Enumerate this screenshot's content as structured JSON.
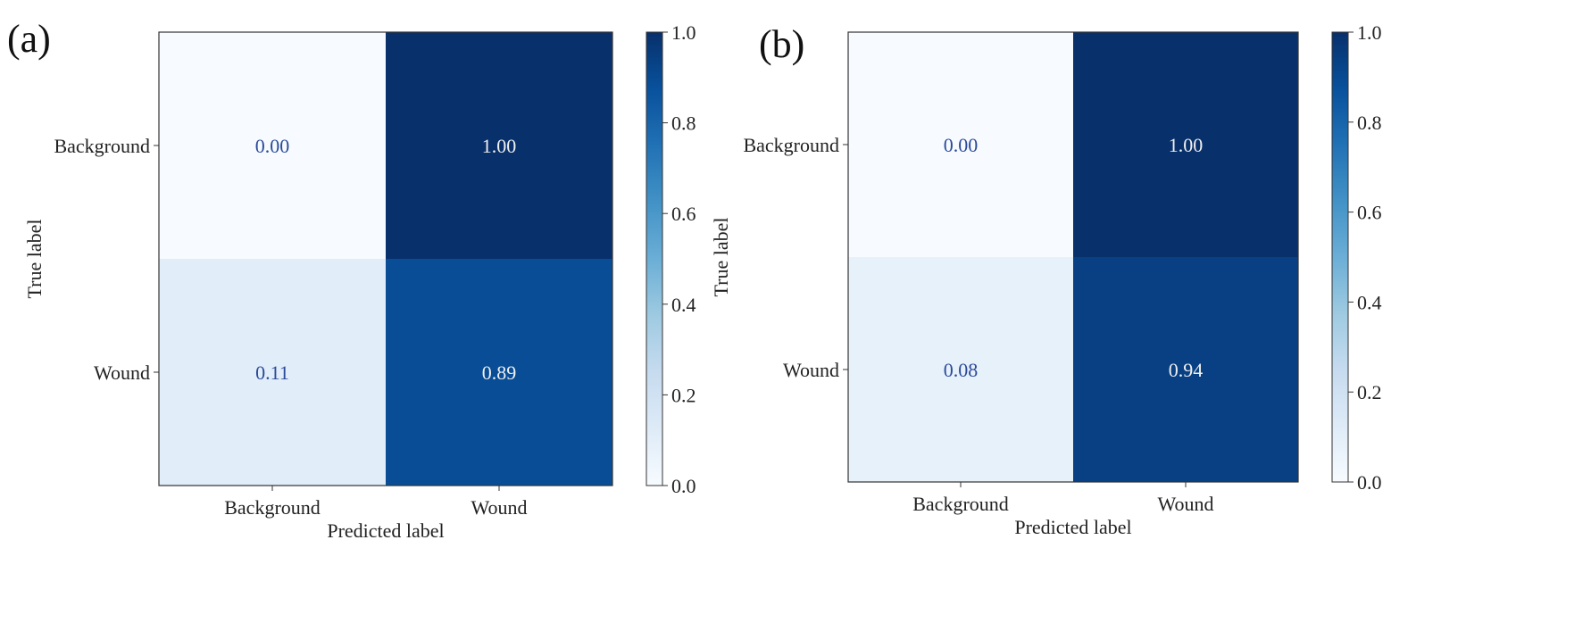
{
  "chart_data": [
    {
      "type": "heatmap",
      "panel_label": "(a)",
      "x_categories": [
        "Background",
        "Wound"
      ],
      "y_categories": [
        "Background",
        "Wound"
      ],
      "matrix": [
        [
          0.0,
          1.0
        ],
        [
          0.11,
          0.89
        ]
      ],
      "matrix_labels": [
        [
          "0.00",
          "1.00"
        ],
        [
          "0.11",
          "0.89"
        ]
      ],
      "xlabel": "Predicted label",
      "ylabel": "True label",
      "colorbar": {
        "range": [
          0.0,
          1.0
        ],
        "ticks": [
          "0.0",
          "0.2",
          "0.4",
          "0.6",
          "0.8",
          "1.0"
        ]
      },
      "colormap": [
        "#f7fbff",
        "#deebf7",
        "#c6dbef",
        "#9ecae1",
        "#6baed6",
        "#4292c6",
        "#2171b5",
        "#08519c",
        "#08306b"
      ]
    },
    {
      "type": "heatmap",
      "panel_label": "(b)",
      "x_categories": [
        "Background",
        "Wound"
      ],
      "y_categories": [
        "Background",
        "Wound"
      ],
      "matrix": [
        [
          0.0,
          1.0
        ],
        [
          0.08,
          0.94
        ]
      ],
      "matrix_labels": [
        [
          "0.00",
          "1.00"
        ],
        [
          "0.08",
          "0.94"
        ]
      ],
      "xlabel": "Predicted label",
      "ylabel": "True label",
      "colorbar": {
        "range": [
          0.0,
          1.0
        ],
        "ticks": [
          "0.0",
          "0.2",
          "0.4",
          "0.6",
          "0.8",
          "1.0"
        ]
      },
      "colormap": [
        "#f7fbff",
        "#deebf7",
        "#c6dbef",
        "#9ecae1",
        "#6baed6",
        "#4292c6",
        "#2171b5",
        "#08519c",
        "#08306b"
      ]
    }
  ]
}
